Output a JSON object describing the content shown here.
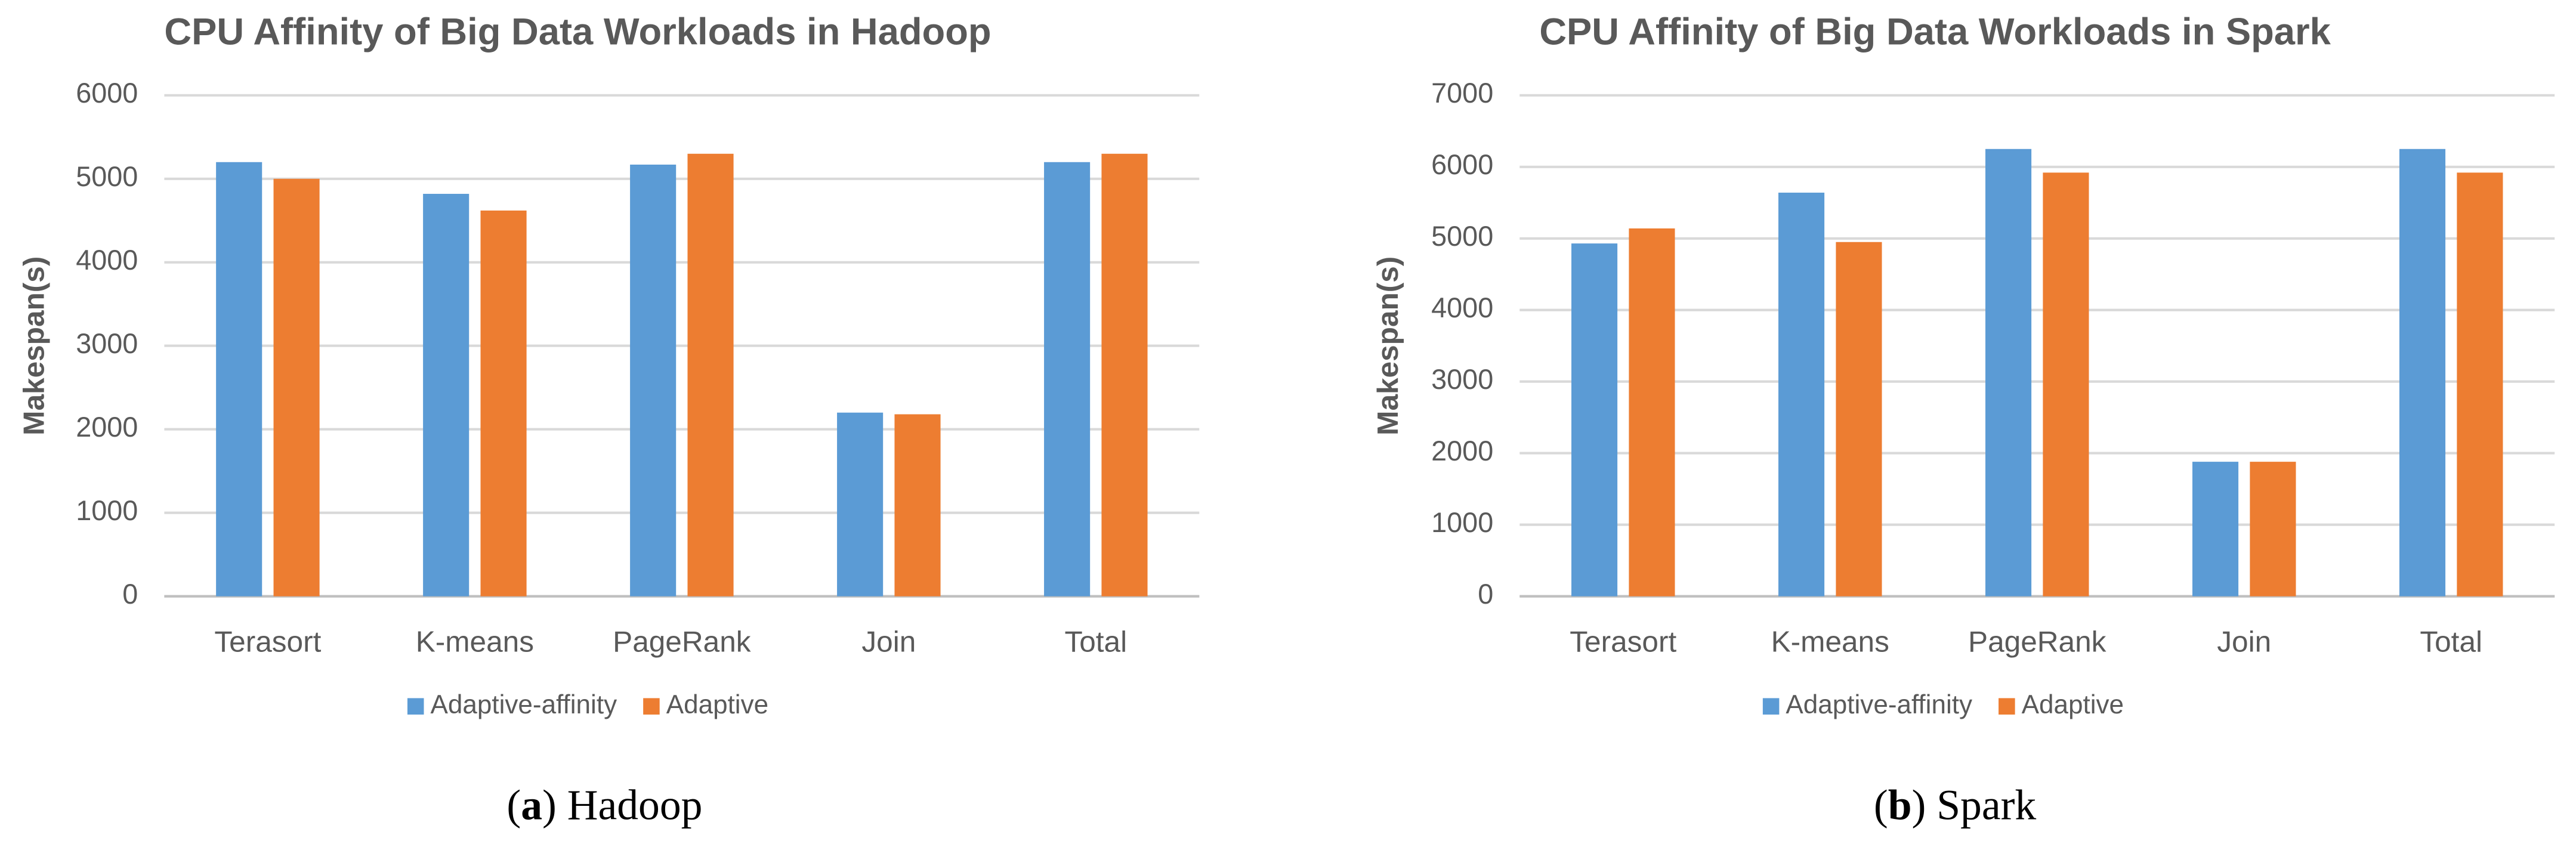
{
  "chart_data": [
    {
      "type": "bar",
      "title": "CPU Affinity of Big Data Workloads in Hadoop",
      "y_label": "Makespan(s)",
      "categories": [
        "Terasort",
        "K-means",
        "PageRank",
        "Join",
        "Total"
      ],
      "series": [
        {
          "name": "Adaptive-affinity",
          "color": "#5b9bd5",
          "values": [
            5200,
            4820,
            5170,
            2200,
            5200
          ]
        },
        {
          "name": "Adaptive",
          "color": "#ed7d31",
          "values": [
            5000,
            4620,
            5300,
            2180,
            5300
          ]
        }
      ],
      "ylim": [
        0,
        6000
      ],
      "yticks": [
        0,
        1000,
        2000,
        3000,
        4000,
        5000,
        6000
      ],
      "grid": true,
      "legend": "bottom",
      "caption": [
        "(",
        "a",
        ") Hadoop"
      ]
    },
    {
      "type": "bar",
      "title": "CPU Affinity of Big Data Workloads in Spark",
      "y_label": "Makespan(s)",
      "categories": [
        "Terasort",
        "K-means",
        "PageRank",
        "Join",
        "Total"
      ],
      "series": [
        {
          "name": "Adaptive-affinity",
          "color": "#5b9bd5",
          "values": [
            4930,
            5640,
            6250,
            1880,
            6250
          ]
        },
        {
          "name": "Adaptive",
          "color": "#ed7d31",
          "values": [
            5140,
            4950,
            5920,
            1880,
            5920
          ]
        }
      ],
      "ylim": [
        0,
        7000
      ],
      "yticks": [
        0,
        1000,
        2000,
        3000,
        4000,
        5000,
        6000,
        7000
      ],
      "grid": true,
      "legend": "bottom",
      "caption": [
        "(",
        "b",
        ") Spark"
      ]
    }
  ]
}
